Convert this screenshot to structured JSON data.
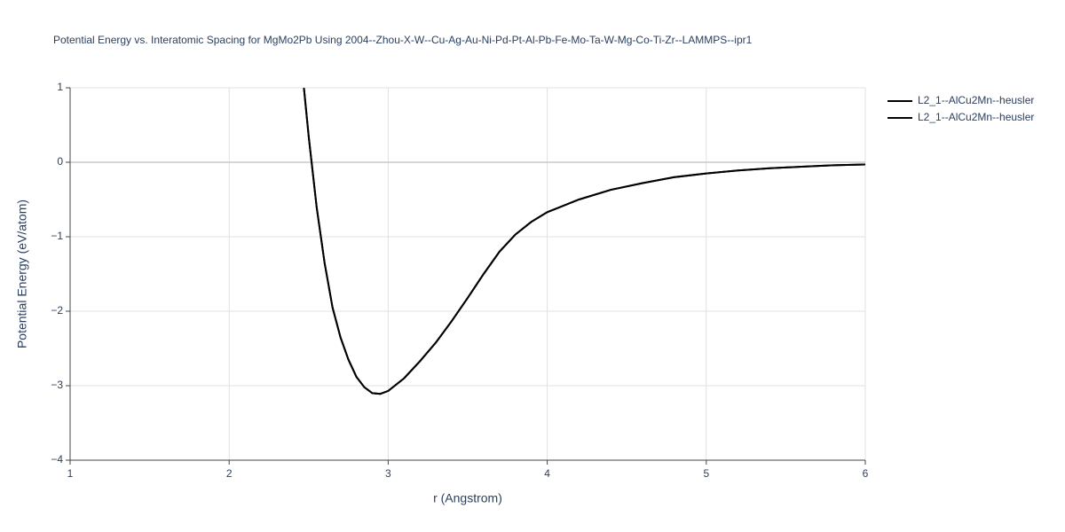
{
  "chart_data": {
    "type": "line",
    "title": "Potential Energy vs. Interatomic Spacing for MgMo2Pb Using 2004--Zhou-X-W--Cu-Ag-Au-Ni-Pd-Pt-Al-Pb-Fe-Mo-Ta-W-Mg-Co-Ti-Zr--LAMMPS--ipr1",
    "x_label": "r (Angstrom)",
    "y_label": "Potential Energy (eV/atom)",
    "xlim": [
      1,
      6
    ],
    "ylim": [
      -4,
      1
    ],
    "xticks": [
      1,
      2,
      3,
      4,
      5,
      6
    ],
    "yticks": [
      {
        "value": -4,
        "label": "−4"
      },
      {
        "value": -3,
        "label": "−3"
      },
      {
        "value": -2,
        "label": "−2"
      },
      {
        "value": -1,
        "label": "−1"
      },
      0,
      1
    ],
    "grid": true,
    "series": [
      {
        "name": "L2_1--AlCu2Mn--heusler",
        "color": "#000000",
        "x": [
          2.47,
          2.5,
          2.55,
          2.6,
          2.65,
          2.7,
          2.75,
          2.8,
          2.85,
          2.9,
          2.95,
          3.0,
          3.1,
          3.2,
          3.3,
          3.4,
          3.5,
          3.6,
          3.7,
          3.8,
          3.9,
          4.0,
          4.2,
          4.4,
          4.6,
          4.8,
          5.0,
          5.2,
          5.4,
          5.6,
          5.8,
          6.0
        ],
        "values": [
          1.0,
          0.35,
          -0.6,
          -1.35,
          -1.95,
          -2.35,
          -2.65,
          -2.88,
          -3.02,
          -3.1,
          -3.11,
          -3.07,
          -2.9,
          -2.67,
          -2.42,
          -2.13,
          -1.82,
          -1.5,
          -1.2,
          -0.97,
          -0.8,
          -0.67,
          -0.5,
          -0.37,
          -0.28,
          -0.2,
          -0.15,
          -0.11,
          -0.08,
          -0.06,
          -0.04,
          -0.03
        ]
      },
      {
        "name": "L2_1--AlCu2Mn--heusler",
        "color": "#000000",
        "x": [
          2.47,
          2.5,
          2.55,
          2.6,
          2.65,
          2.7,
          2.75,
          2.8,
          2.85,
          2.9,
          2.95,
          3.0,
          3.1,
          3.2,
          3.3,
          3.4,
          3.5,
          3.6,
          3.7,
          3.8,
          3.9,
          4.0,
          4.2,
          4.4,
          4.6,
          4.8,
          5.0,
          5.2,
          5.4,
          5.6,
          5.8,
          6.0
        ],
        "values": [
          1.0,
          0.35,
          -0.6,
          -1.35,
          -1.95,
          -2.35,
          -2.65,
          -2.88,
          -3.02,
          -3.1,
          -3.11,
          -3.07,
          -2.9,
          -2.67,
          -2.42,
          -2.13,
          -1.82,
          -1.5,
          -1.2,
          -0.97,
          -0.8,
          -0.67,
          -0.5,
          -0.37,
          -0.28,
          -0.2,
          -0.15,
          -0.11,
          -0.08,
          -0.06,
          -0.04,
          -0.03
        ]
      }
    ]
  }
}
